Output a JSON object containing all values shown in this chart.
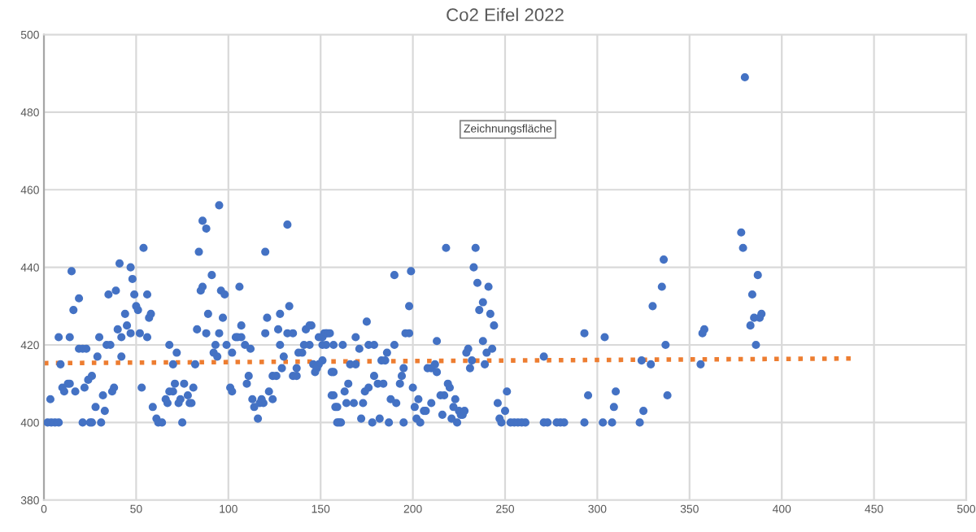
{
  "chart_data": {
    "type": "scatter",
    "title": "Co2 Eifel 2022",
    "annotations": [
      "Zeichnungsfläche"
    ],
    "xlim": [
      0,
      500
    ],
    "xticks": [
      0,
      50,
      100,
      150,
      200,
      250,
      300,
      350,
      400,
      450,
      500
    ],
    "ylim": [
      380,
      500
    ],
    "yticks": [
      380,
      400,
      420,
      440,
      460,
      480,
      500
    ],
    "grid": true,
    "legend": false,
    "marker": "circle",
    "series": [
      {
        "color": "#4472c4",
        "x": [
          2,
          4,
          6,
          8,
          3.5,
          8,
          9,
          10,
          11,
          13,
          14,
          14,
          15,
          16,
          17,
          19,
          21,
          23,
          19,
          21,
          25,
          26,
          31,
          22,
          24,
          26,
          28,
          29,
          30,
          32,
          33,
          34,
          36,
          35,
          37,
          38,
          39,
          40,
          42,
          41,
          42,
          44,
          45,
          47,
          48,
          47,
          49,
          50,
          51,
          52,
          53,
          54,
          56,
          56,
          57,
          58,
          59,
          61,
          62,
          64,
          66,
          67,
          68,
          70,
          71,
          68,
          70,
          72,
          73,
          74,
          75,
          76,
          78,
          79,
          80,
          81,
          82,
          83,
          84,
          85,
          86,
          86,
          88,
          88,
          89,
          91,
          92,
          93,
          94,
          95,
          95,
          96,
          98,
          97,
          99,
          101,
          102,
          102,
          104,
          105,
          106,
          107,
          107,
          109,
          110,
          111,
          112,
          113,
          114,
          116,
          117,
          118,
          119,
          120,
          120,
          121,
          122,
          124,
          124,
          126,
          127,
          128,
          128,
          129,
          130,
          132,
          132,
          133,
          135,
          135,
          137,
          137,
          138,
          140,
          141,
          142,
          144,
          145,
          144,
          146,
          147,
          148,
          149,
          149,
          151,
          152,
          153,
          155,
          153,
          157,
          157,
          158,
          159,
          151,
          153,
          154,
          151,
          157,
          162,
          156,
          156,
          163,
          165,
          159,
          160,
          161,
          164,
          166,
          169,
          168,
          169,
          171,
          172,
          173,
          174,
          176,
          175,
          176,
          179,
          178,
          179,
          181,
          184,
          182,
          183,
          185,
          187,
          186,
          188,
          191,
          190,
          190,
          193,
          194,
          195,
          196,
          198,
          195,
          198,
          199,
          200,
          201,
          202,
          204,
          206,
          207,
          203,
          208,
          210,
          212,
          210,
          213,
          213,
          215,
          217,
          216,
          218,
          219,
          220,
          221,
          222,
          223,
          224,
          225,
          226,
          227,
          228,
          229,
          230,
          231,
          232,
          233,
          234,
          235,
          236,
          238,
          238,
          239,
          240,
          241,
          242,
          243,
          244,
          246,
          247,
          248,
          250,
          251,
          253,
          255,
          257,
          259,
          261,
          271,
          271,
          273,
          278,
          280,
          282,
          293,
          293,
          295,
          303,
          304,
          308,
          309,
          310,
          323,
          325,
          324,
          329,
          330,
          335,
          336,
          337,
          338,
          356,
          357,
          358,
          378,
          379,
          380,
          383,
          384,
          385,
          386,
          387,
          388,
          389
        ],
        "values": [
          400,
          400,
          400,
          400,
          406,
          422,
          415,
          409,
          408,
          410,
          410,
          422,
          439,
          429,
          408,
          419,
          419,
          419,
          432,
          400,
          400,
          400,
          400,
          409,
          411,
          412,
          404,
          417,
          422,
          407,
          403,
          420,
          420,
          433,
          408,
          409,
          434,
          424,
          422,
          441,
          417,
          428,
          425,
          440,
          437,
          423,
          433,
          430,
          429,
          423,
          409,
          445,
          433,
          422,
          427,
          428,
          404,
          401,
          400,
          400,
          406,
          405,
          408,
          408,
          410,
          420,
          415,
          418,
          405,
          406,
          400,
          410,
          407,
          405,
          405,
          409,
          415,
          424,
          444,
          434,
          435,
          452,
          450,
          423,
          428,
          438,
          418,
          420,
          417,
          456,
          423,
          434,
          433,
          427,
          420,
          409,
          408,
          418,
          422,
          422,
          435,
          425,
          422,
          420,
          410,
          412,
          419,
          406,
          404,
          401,
          405,
          406,
          405,
          423,
          444,
          427,
          408,
          406,
          412,
          412,
          424,
          428,
          420,
          414,
          417,
          423,
          451,
          430,
          423,
          412,
          412,
          414,
          418,
          418,
          420,
          424,
          425,
          425,
          420,
          415,
          413,
          414,
          422,
          415,
          416,
          423,
          423,
          423,
          420,
          407,
          413,
          404,
          400,
          422,
          423,
          423,
          420,
          420,
          420,
          413,
          407,
          408,
          410,
          404,
          400,
          400,
          405,
          415,
          415,
          405,
          422,
          419,
          401,
          405,
          408,
          409,
          426,
          420,
          420,
          400,
          412,
          410,
          410,
          401,
          416,
          416,
          400,
          418,
          406,
          405,
          420,
          438,
          410,
          412,
          414,
          423,
          423,
          400,
          430,
          439,
          409,
          404,
          401,
          400,
          403,
          403,
          406,
          414,
          414,
          415,
          405,
          413,
          421,
          407,
          407,
          402,
          445,
          410,
          409,
          401,
          404,
          406,
          400,
          403,
          402,
          402,
          403,
          418,
          419,
          414,
          416,
          440,
          445,
          436,
          429,
          431,
          421,
          415,
          418,
          435,
          428,
          419,
          425,
          405,
          401,
          400,
          403,
          408,
          400,
          400,
          400,
          400,
          400,
          417,
          400,
          400,
          400,
          400,
          400,
          400,
          423,
          407,
          400,
          422,
          400,
          404,
          408,
          400,
          403,
          416,
          415,
          430,
          435,
          442,
          420,
          407,
          415,
          423,
          424,
          449,
          445,
          489,
          425,
          433,
          427,
          420,
          438,
          427,
          428
        ]
      },
      {
        "type": "line",
        "color": "#ed7d31",
        "line_style": "dotted",
        "marker": "none",
        "x": [
          0,
          440
        ],
        "values": [
          415.3,
          416.5
        ]
      }
    ]
  }
}
